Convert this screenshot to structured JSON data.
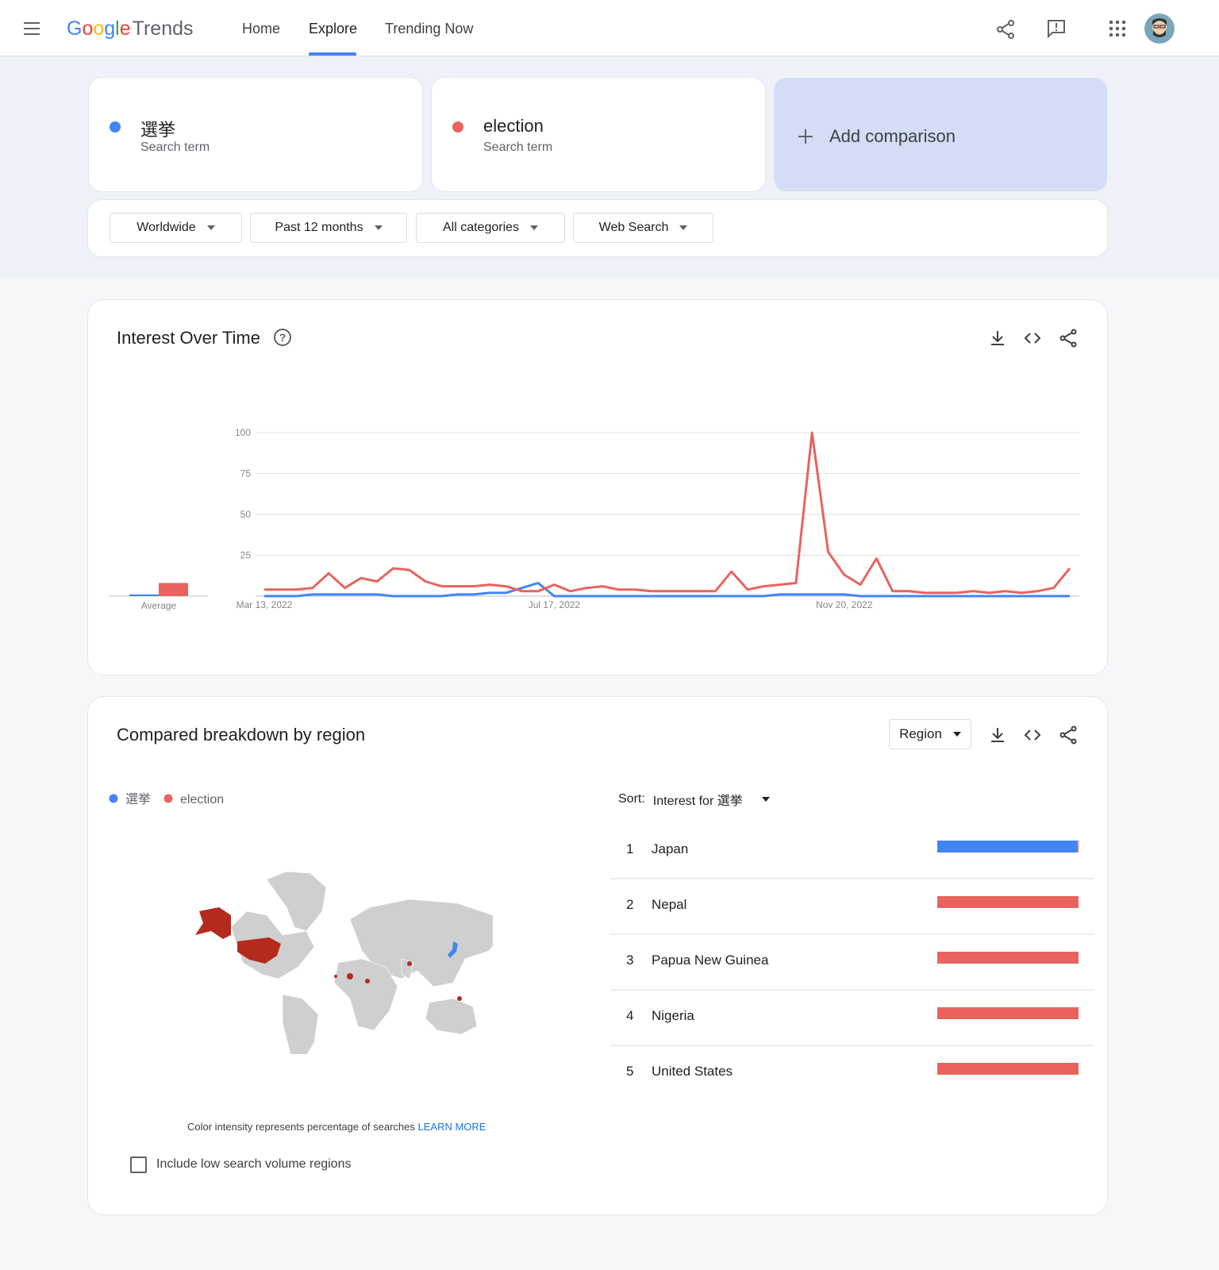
{
  "header": {
    "brand": "Google",
    "product": "Trends",
    "nav": [
      "Home",
      "Explore",
      "Trending Now"
    ],
    "active": 1
  },
  "terms": [
    {
      "label": "選挙",
      "sub": "Search term",
      "color": "#4285f4"
    },
    {
      "label": "election",
      "sub": "Search term",
      "color": "#e8635e"
    }
  ],
  "add_comparison": "Add comparison",
  "filters": [
    "Worldwide",
    "Past 12 months",
    "All categories",
    "Web Search"
  ],
  "region_section": {
    "title": "Compared breakdown by region",
    "dropdown": "Region",
    "sort_label": "Sort:",
    "sort_value": "Interest for 選挙",
    "note": "Color intensity represents percentage of searches",
    "link": "LEARN MORE",
    "checkbox": "Include low search volume regions",
    "ranks": [
      1,
      2,
      3,
      4,
      5
    ]
  },
  "chart_data": [
    {
      "type": "line",
      "title": "Interest Over Time",
      "average_label": "Average",
      "categories": [
        "Mar 13, 2022",
        null,
        null,
        null,
        null,
        null,
        null,
        null,
        null,
        null,
        null,
        null,
        null,
        null,
        null,
        null,
        null,
        null,
        "Jul 17, 2022",
        null,
        null,
        null,
        null,
        null,
        null,
        null,
        null,
        null,
        null,
        null,
        null,
        null,
        null,
        null,
        null,
        null,
        "Nov 20, 2022",
        null,
        null,
        null,
        null,
        null,
        null,
        null,
        null,
        null,
        null,
        null,
        null,
        null,
        null
      ],
      "series": [
        {
          "name": "選挙",
          "color": "#4285f4",
          "average": 1,
          "values": [
            0,
            0,
            0,
            1,
            1,
            1,
            1,
            1,
            0,
            0,
            0,
            0,
            1,
            1,
            2,
            2,
            5,
            8,
            0,
            0,
            0,
            0,
            0,
            0,
            0,
            0,
            0,
            0,
            0,
            0,
            0,
            0,
            1,
            1,
            1,
            1,
            1,
            0,
            0,
            0,
            0,
            0,
            0,
            0,
            0,
            0,
            0,
            0,
            0,
            0,
            0
          ]
        },
        {
          "name": "election",
          "color": "#e8635e",
          "average": 8,
          "values": [
            4,
            4,
            4,
            5,
            14,
            5,
            11,
            9,
            17,
            16,
            9,
            6,
            6,
            6,
            7,
            6,
            3,
            3,
            7,
            3,
            5,
            6,
            4,
            4,
            3,
            3,
            3,
            3,
            3,
            15,
            4,
            6,
            7,
            8,
            100,
            27,
            13,
            7,
            23,
            3,
            3,
            2,
            2,
            2,
            3,
            2,
            3,
            2,
            3,
            5,
            17
          ]
        }
      ],
      "ylim": [
        0,
        100
      ],
      "yticks": [
        25,
        50,
        75,
        100
      ],
      "grid": true
    },
    {
      "type": "bar",
      "orientation": "horizontal",
      "stacked": true,
      "categories": [
        "Japan",
        "Nepal",
        "Papua New Guinea",
        "Nigeria",
        "United States"
      ],
      "series": [
        {
          "name": "選挙",
          "color": "#4285f4",
          "values": [
            99,
            0,
            0,
            0,
            0
          ]
        },
        {
          "name": "election",
          "color": "#e8635e",
          "values": [
            1,
            100,
            100,
            100,
            100
          ]
        }
      ],
      "xlim": [
        0,
        100
      ]
    }
  ]
}
